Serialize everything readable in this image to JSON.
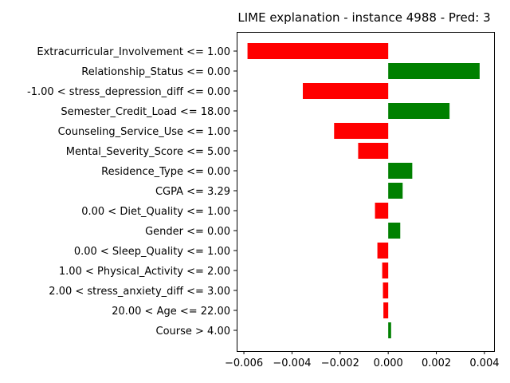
{
  "chart_data": {
    "type": "bar",
    "orientation": "horizontal",
    "title": "LIME explanation - instance 4988 - Pred: 3",
    "xlabel": "",
    "ylabel": "",
    "xlim": [
      -0.0063,
      0.0044
    ],
    "xticks": [
      -0.006,
      -0.004,
      -0.002,
      0.0,
      0.002,
      0.004
    ],
    "xtick_labels": [
      "−0.006",
      "−0.004",
      "−0.002",
      "0.000",
      "0.002",
      "0.004"
    ],
    "grid": false,
    "positive_color": "#008000",
    "negative_color": "#ff0000",
    "categories": [
      "Extracurricular_Involvement <= 1.00",
      "Relationship_Status <= 0.00",
      "-1.00 < stress_depression_diff <= 0.00",
      "Semester_Credit_Load <= 18.00",
      "Counseling_Service_Use <= 1.00",
      "Mental_Severity_Score <= 5.00",
      "Residence_Type <= 0.00",
      "CGPA <= 3.29",
      "0.00 < Diet_Quality <= 1.00",
      "Gender <= 0.00",
      "0.00 < Sleep_Quality <= 1.00",
      "1.00 < Physical_Activity <= 2.00",
      "2.00 < stress_anxiety_diff <= 3.00",
      "20.00 < Age <= 22.00",
      "Course > 4.00"
    ],
    "values": [
      -0.00585,
      0.0038,
      -0.00355,
      0.00255,
      -0.00225,
      -0.00125,
      0.001,
      0.0006,
      -0.00055,
      0.0005,
      -0.00045,
      -0.00025,
      -0.00022,
      -0.0002,
      0.00012
    ]
  }
}
